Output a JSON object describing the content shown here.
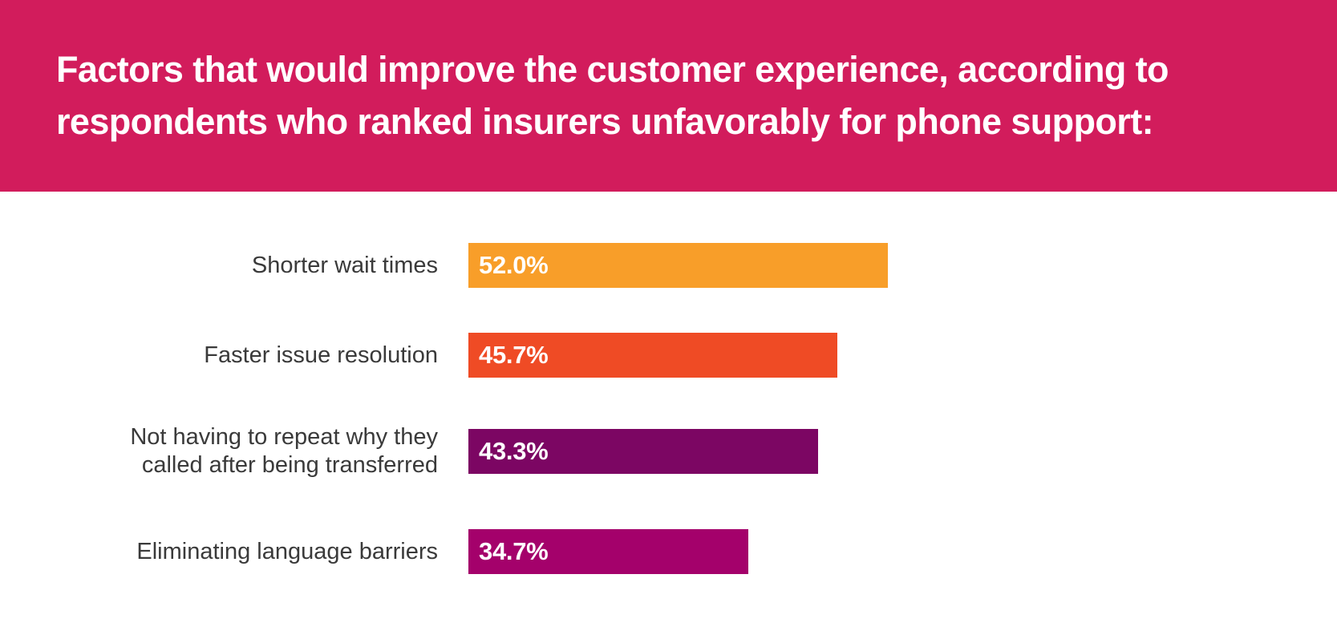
{
  "header": {
    "title_lines": [
      "Factors that would improve the customer experience, according to",
      "respondents who ranked insurers unfavorably for phone support:"
    ],
    "background_color": "#D21C5C",
    "text_color": "#FFFFFF"
  },
  "chart_data": {
    "type": "bar",
    "orientation": "horizontal",
    "title": "Factors that would improve the customer experience, according to respondents who ranked insurers unfavorably for phone support:",
    "categories": [
      "Shorter wait times",
      "Faster issue resolution",
      "Not having to repeat why they\ncalled after being transferred",
      "Eliminating language barriers"
    ],
    "values": [
      52.0,
      45.7,
      43.3,
      34.7
    ],
    "value_labels": [
      "52.0%",
      "45.7%",
      "43.3%",
      "34.7%"
    ],
    "bar_colors": [
      "#F89E29",
      "#EF4B25",
      "#7C0663",
      "#A4016B"
    ],
    "category_label_color": "#3A3A3A",
    "value_label_color": "#FFFFFF",
    "xlim": [
      0,
      57
    ],
    "grid": false,
    "legend": false
  }
}
